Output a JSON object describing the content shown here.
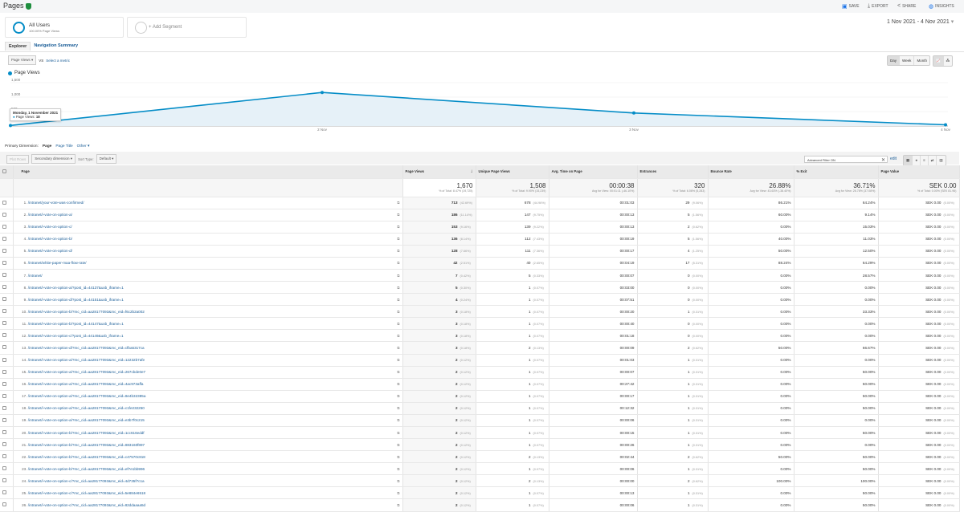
{
  "header": {
    "title": "Pages",
    "actions": [
      {
        "icon": "save-icon",
        "label": "SAVE"
      },
      {
        "icon": "export-icon",
        "label": "EXPORT"
      },
      {
        "icon": "share-icon",
        "label": "SHARE"
      },
      {
        "icon": "insights-icon",
        "label": "INSIGHTS"
      }
    ]
  },
  "segments": {
    "all_users": "All Users",
    "all_users_sub": "100.00% Page Views",
    "add": "+ Add Segment"
  },
  "date_range": "1 Nov 2021 - 4 Nov 2021",
  "tabs": [
    "Explorer",
    "Navigation Summary"
  ],
  "metric_select": "Page Views",
  "vs": "VS",
  "select_metric": "Select a metric",
  "granularity": [
    "Day",
    "Week",
    "Month"
  ],
  "accent": "#058dc7",
  "chart_data": {
    "type": "area",
    "legend": "Page Views",
    "x": [
      "1 Nov",
      "2 Nov",
      "3 Nov",
      "4 Nov"
    ],
    "x_tick_labels": [
      "2 Nov",
      "3 Nov",
      "4 Nov"
    ],
    "values": [
      18,
      1160,
      450,
      42
    ],
    "y_ticks": [
      "500",
      "1,000",
      "1,500"
    ],
    "ylim": [
      0,
      1500
    ],
    "tooltip": {
      "title": "Monday, 1 November 2021",
      "label": "Page Views:",
      "value": "18"
    }
  },
  "dimension": {
    "label": "Primary Dimension:",
    "options": [
      "Page",
      "Page Title",
      "Other"
    ]
  },
  "controls": {
    "plot_rows": "Plot Rows",
    "secondary": "Secondary dimension",
    "sort_type": "Sort Type:",
    "sort_value": "Default",
    "filter": "Advanced Filter ON",
    "edit": "edit"
  },
  "columns": [
    "Page",
    "Page Views",
    "Unique Page Views",
    "Avg. Time on Page",
    "Entrances",
    "Bounce Rate",
    "% Exit",
    "Page Value"
  ],
  "totals": [
    [
      "1,670",
      "% of Total: 8.47% (19,725)"
    ],
    [
      "1,508",
      "% of Total: 9.90% (15,239)"
    ],
    [
      "00:00:38",
      "Avg for View: 00:01:11 (-46.10%)"
    ],
    [
      "320",
      "% of Total: 6.06% (5,283)"
    ],
    [
      "26.88%",
      "Avg for View: 43.63% (-38.40%)"
    ],
    [
      "36.71%",
      "Avg for View: 26.78% (37.08%)"
    ],
    [
      "SEK 0.00",
      "% of Total: 0.00% (SEK 81.96)"
    ]
  ],
  "rows": [
    [
      "1.",
      "/intranet/your-vote-was-confirmed/",
      "713",
      "(42.69%)",
      "678",
      "(44.96%)",
      "00:01:03",
      "29",
      "(9.06%)",
      "86.21%",
      "64.24%",
      "SEK 0.00",
      "(0.00%)"
    ],
    [
      "2.",
      "/intranet/i-vote-on-option-a/",
      "186",
      "(11.14%)",
      "147",
      "(9.75%)",
      "00:00:13",
      "5",
      "(1.56%)",
      "60.00%",
      "9.14%",
      "SEK 0.00",
      "(0.00%)"
    ],
    [
      "3.",
      "/intranet/i-vote-on-option-c/",
      "153",
      "(9.16%)",
      "139",
      "(9.22%)",
      "00:00:13",
      "2",
      "(0.62%)",
      "0.00%",
      "15.03%",
      "SEK 0.00",
      "(0.00%)"
    ],
    [
      "4.",
      "/intranet/i-vote-on-option-b/",
      "136",
      "(8.14%)",
      "112",
      "(7.43%)",
      "00:00:19",
      "5",
      "(1.56%)",
      "40.00%",
      "11.03%",
      "SEK 0.00",
      "(0.00%)"
    ],
    [
      "5.",
      "/intranet/i-vote-on-option-d/",
      "128",
      "(7.66%)",
      "111",
      "(7.36%)",
      "00:00:17",
      "4",
      "(1.25%)",
      "50.00%",
      "12.50%",
      "SEK 0.00",
      "(0.00%)"
    ],
    [
      "6.",
      "/intranet/white-paper-maa-flow-rate/",
      "42",
      "(2.51%)",
      "40",
      "(2.65%)",
      "00:04:19",
      "17",
      "(5.31%)",
      "88.24%",
      "64.29%",
      "SEK 0.00",
      "(0.00%)"
    ],
    [
      "7.",
      "/intranet/",
      "7",
      "(0.42%)",
      "5",
      "(0.33%)",
      "00:00:07",
      "0",
      "(0.00%)",
      "0.00%",
      "28.57%",
      "SEK 0.00",
      "(0.00%)"
    ],
    [
      "8.",
      "/intranet/i-vote-on-option-a/?post_id=44137&uxb_iframe=1",
      "5",
      "(0.30%)",
      "1",
      "(0.07%)",
      "00:03:00",
      "0",
      "(0.00%)",
      "0.00%",
      "0.00%",
      "SEK 0.00",
      "(0.00%)"
    ],
    [
      "9.",
      "/intranet/i-vote-on-option-d/?post_id=44151&uxb_iframe=1",
      "4",
      "(0.24%)",
      "1",
      "(0.07%)",
      "00:07:51",
      "0",
      "(0.00%)",
      "0.00%",
      "0.00%",
      "SEK 0.00",
      "(0.00%)"
    ],
    [
      "10.",
      "/intranet/i-vote-on-option-b/?mc_cid=aa28177093&mc_eid=f6c2b2a002",
      "3",
      "(0.18%)",
      "1",
      "(0.07%)",
      "00:00:20",
      "1",
      "(0.31%)",
      "0.00%",
      "33.33%",
      "SEK 0.00",
      "(0.00%)"
    ],
    [
      "11.",
      "/intranet/i-vote-on-option-b/?post_id=44147&uxb_iframe=1",
      "3",
      "(0.18%)",
      "1",
      "(0.07%)",
      "00:00:40",
      "0",
      "(0.00%)",
      "0.00%",
      "0.00%",
      "SEK 0.00",
      "(0.00%)"
    ],
    [
      "12.",
      "/intranet/i-vote-on-option-c/?post_id=44149&uxb_iframe=1",
      "3",
      "(0.18%)",
      "1",
      "(0.07%)",
      "00:01:18",
      "0",
      "(0.00%)",
      "0.00%",
      "0.00%",
      "SEK 0.00",
      "(0.00%)"
    ],
    [
      "13.",
      "/intranet/i-vote-on-option-d/?mc_cid=aa28177093&mc_eid=cfba5317ca",
      "3",
      "(0.18%)",
      "2",
      "(0.13%)",
      "00:00:09",
      "2",
      "(0.62%)",
      "50.00%",
      "66.67%",
      "SEK 0.00",
      "(0.00%)"
    ],
    [
      "14.",
      "/intranet/i-vote-on-option-a/?mc_cid=aa28177093&mc_eid=12232b7afe",
      "2",
      "(0.12%)",
      "1",
      "(0.07%)",
      "00:01:03",
      "1",
      "(0.31%)",
      "0.00%",
      "0.00%",
      "SEK 0.00",
      "(0.00%)"
    ],
    [
      "15.",
      "/intranet/i-vote-on-option-a/?mc_cid=aa28177093&mc_eid=267cbde0e7",
      "2",
      "(0.12%)",
      "1",
      "(0.07%)",
      "00:00:07",
      "1",
      "(0.31%)",
      "0.00%",
      "50.00%",
      "SEK 0.00",
      "(0.00%)"
    ],
    [
      "16.",
      "/intranet/i-vote-on-option-a/?mc_cid=aa28177093&mc_eid=4ac973affa",
      "2",
      "(0.12%)",
      "1",
      "(0.07%)",
      "00:27:42",
      "1",
      "(0.31%)",
      "0.00%",
      "50.00%",
      "SEK 0.00",
      "(0.00%)"
    ],
    [
      "17.",
      "/intranet/i-vote-on-option-a/?mc_cid=aa28177093&mc_eid=8e4b32385a",
      "2",
      "(0.12%)",
      "1",
      "(0.07%)",
      "00:00:17",
      "1",
      "(0.31%)",
      "0.00%",
      "50.00%",
      "SEK 0.00",
      "(0.00%)"
    ],
    [
      "18.",
      "/intranet/i-vote-on-option-a/?mc_cid=aa28177093&mc_eid=c1fe232250",
      "2",
      "(0.12%)",
      "1",
      "(0.07%)",
      "00:12:32",
      "1",
      "(0.31%)",
      "0.00%",
      "50.00%",
      "SEK 0.00",
      "(0.00%)"
    ],
    [
      "19.",
      "/intranet/i-vote-on-option-a/?mc_cid=aa28177093&mc_eid=e3b7f0c215",
      "2",
      "(0.12%)",
      "1",
      "(0.07%)",
      "00:00:06",
      "1",
      "(0.31%)",
      "0.00%",
      "0.00%",
      "SEK 0.00",
      "(0.00%)"
    ],
    [
      "20.",
      "/intranet/i-vote-on-option-b/?mc_cid=aa28177093&mc_eid=1cc616eddf",
      "2",
      "(0.12%)",
      "1",
      "(0.07%)",
      "00:00:15",
      "1",
      "(0.31%)",
      "0.00%",
      "50.00%",
      "SEK 0.00",
      "(0.00%)"
    ],
    [
      "21.",
      "/intranet/i-vote-on-option-b/?mc_cid=aa28177093&mc_eid=883160f897",
      "2",
      "(0.12%)",
      "1",
      "(0.07%)",
      "00:00:26",
      "1",
      "(0.31%)",
      "0.00%",
      "0.00%",
      "SEK 0.00",
      "(0.00%)"
    ],
    [
      "22.",
      "/intranet/i-vote-on-option-b/?mc_cid=aa28177093&mc_eid=c47570c818",
      "2",
      "(0.12%)",
      "2",
      "(0.13%)",
      "00:02:44",
      "2",
      "(0.62%)",
      "50.00%",
      "50.00%",
      "SEK 0.00",
      "(0.00%)"
    ],
    [
      "23.",
      "/intranet/i-vote-on-option-b/?mc_cid=aa28177093&mc_eid=ef7e1bb996",
      "2",
      "(0.12%)",
      "1",
      "(0.07%)",
      "00:00:06",
      "1",
      "(0.31%)",
      "0.00%",
      "50.00%",
      "SEK 0.00",
      "(0.00%)"
    ],
    [
      "24.",
      "/intranet/i-vote-on-option-c/?mc_cid=aa28177093&mc_eid=4d735f7c1a",
      "2",
      "(0.12%)",
      "2",
      "(0.13%)",
      "00:00:00",
      "2",
      "(0.62%)",
      "100.00%",
      "100.00%",
      "SEK 0.00",
      "(0.00%)"
    ],
    [
      "25.",
      "/intranet/i-vote-on-option-c/?mc_cid=aa28177093&mc_eid=5e884e6518",
      "2",
      "(0.12%)",
      "1",
      "(0.07%)",
      "00:00:13",
      "1",
      "(0.31%)",
      "0.00%",
      "50.00%",
      "SEK 0.00",
      "(0.00%)"
    ],
    [
      "26.",
      "/intranet/i-vote-on-option-c/?mc_cid=aa28177093&mc_eid=82ddaaaa5d",
      "2",
      "(0.12%)",
      "1",
      "(0.07%)",
      "00:00:06",
      "1",
      "(0.31%)",
      "0.00%",
      "50.00%",
      "SEK 0.00",
      "(0.00%)"
    ]
  ]
}
